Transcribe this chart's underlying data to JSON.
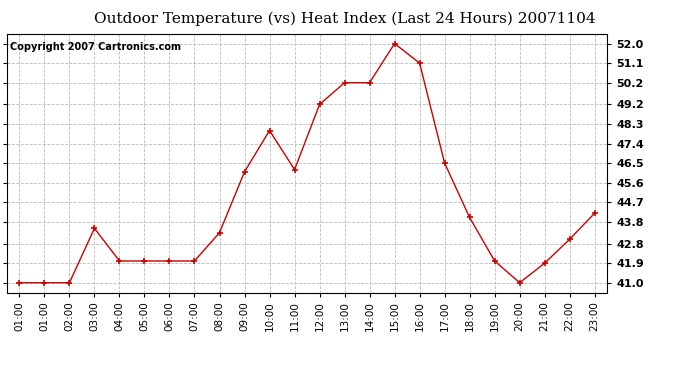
{
  "title": "Outdoor Temperature (vs) Heat Index (Last 24 Hours) 20071104",
  "copyright": "Copyright 2007 Cartronics.com",
  "x_labels": [
    "01:00",
    "01:00",
    "02:00",
    "03:00",
    "04:00",
    "05:00",
    "06:00",
    "07:00",
    "08:00",
    "09:00",
    "10:00",
    "11:00",
    "12:00",
    "13:00",
    "14:00",
    "15:00",
    "16:00",
    "17:00",
    "18:00",
    "19:00",
    "20:00",
    "21:00",
    "22:00",
    "23:00"
  ],
  "y_values": [
    41.0,
    41.0,
    41.0,
    43.5,
    42.0,
    42.0,
    42.0,
    42.0,
    43.3,
    46.1,
    48.0,
    46.2,
    49.2,
    50.2,
    50.2,
    52.0,
    51.1,
    46.5,
    44.0,
    42.0,
    41.0,
    41.9,
    43.0,
    44.2
  ],
  "y_tick_labels": [
    "41.0",
    "41.9",
    "42.8",
    "43.8",
    "44.7",
    "45.6",
    "46.5",
    "47.4",
    "48.3",
    "49.2",
    "50.2",
    "51.1",
    "52.0"
  ],
  "y_tick_values": [
    41.0,
    41.9,
    42.8,
    43.8,
    44.7,
    45.6,
    46.5,
    47.4,
    48.3,
    49.2,
    50.2,
    51.1,
    52.0
  ],
  "ylim": [
    40.55,
    52.45
  ],
  "line_color": "#cc0000",
  "marker_color": "#cc0000",
  "bg_color": "#ffffff",
  "grid_color": "#bbbbbb",
  "title_fontsize": 11,
  "copyright_fontsize": 7,
  "tick_fontsize": 7.5,
  "ytick_fontsize": 8
}
